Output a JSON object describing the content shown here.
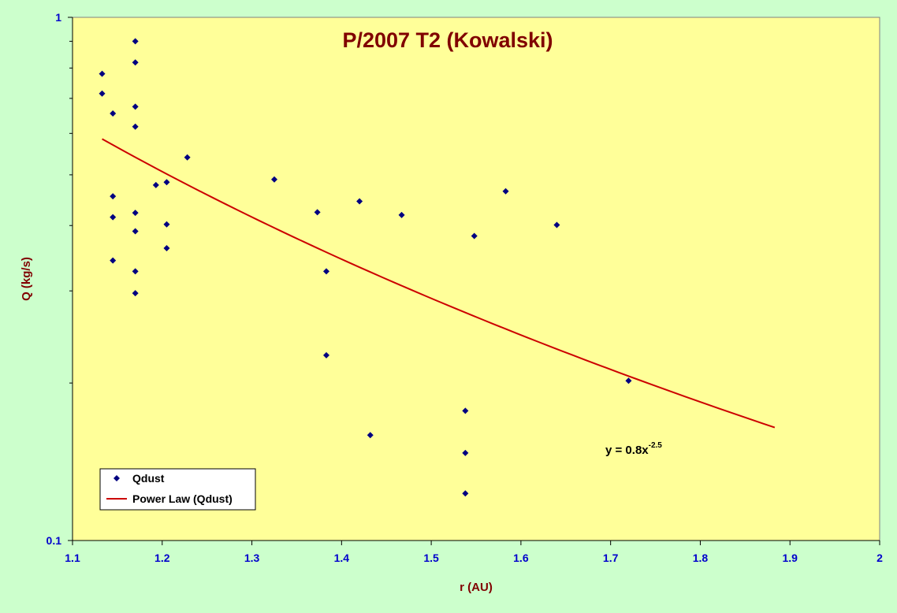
{
  "chart_data": {
    "type": "scatter",
    "title": "P/2007 T2 (Kowalski)",
    "xlabel": "r (AU)",
    "ylabel": "Q (kg/s)",
    "xlim": [
      1.1,
      2.0
    ],
    "ylim": [
      0.1,
      1.0
    ],
    "y_scale": "log",
    "x_ticks": [
      "1.1",
      "1.2",
      "1.3",
      "1.4",
      "1.5",
      "1.6",
      "1.7",
      "1.8",
      "1.9",
      "2"
    ],
    "x_tick_values": [
      1.1,
      1.2,
      1.3,
      1.4,
      1.5,
      1.6,
      1.7,
      1.8,
      1.9,
      2.0
    ],
    "y_ticks": [
      "0.1",
      "1"
    ],
    "y_tick_values": [
      0.1,
      1.0
    ],
    "grid": false,
    "legend_position": "bottom-left",
    "series": [
      {
        "name": "Qdust",
        "type": "scatter",
        "color": "#000080",
        "points": [
          [
            1.133,
            0.78
          ],
          [
            1.133,
            0.715
          ],
          [
            1.145,
            0.655
          ],
          [
            1.145,
            0.455
          ],
          [
            1.145,
            0.415
          ],
          [
            1.145,
            0.343
          ],
          [
            1.17,
            0.9
          ],
          [
            1.17,
            0.82
          ],
          [
            1.17,
            0.675
          ],
          [
            1.17,
            0.618
          ],
          [
            1.17,
            0.423
          ],
          [
            1.17,
            0.39
          ],
          [
            1.17,
            0.327
          ],
          [
            1.17,
            0.297
          ],
          [
            1.193,
            0.478
          ],
          [
            1.205,
            0.484
          ],
          [
            1.205,
            0.402
          ],
          [
            1.205,
            0.362
          ],
          [
            1.228,
            0.54
          ],
          [
            1.325,
            0.49
          ],
          [
            1.373,
            0.424
          ],
          [
            1.383,
            0.327
          ],
          [
            1.383,
            0.226
          ],
          [
            1.42,
            0.445
          ],
          [
            1.432,
            0.159
          ],
          [
            1.467,
            0.419
          ],
          [
            1.538,
            0.177
          ],
          [
            1.538,
            0.147
          ],
          [
            1.538,
            0.123
          ],
          [
            1.548,
            0.382
          ],
          [
            1.583,
            0.465
          ],
          [
            1.64,
            0.401
          ],
          [
            1.72,
            0.202
          ]
        ]
      },
      {
        "name": "Power Law (Qdust)",
        "type": "line",
        "color": "#cc0000",
        "coefficient": 0.8,
        "exponent": -2.5,
        "x_range": [
          1.133,
          1.883
        ]
      }
    ],
    "annotations": [
      {
        "text": "y = 0.8x",
        "superscript": "-2.5"
      }
    ]
  },
  "colors": {
    "figure_background": "#ccffcc",
    "plot_background": "#ffff99",
    "title_color": "#800000",
    "tick_color": "#0000cc",
    "marker_color": "#000080",
    "trend_color": "#cc0000"
  }
}
